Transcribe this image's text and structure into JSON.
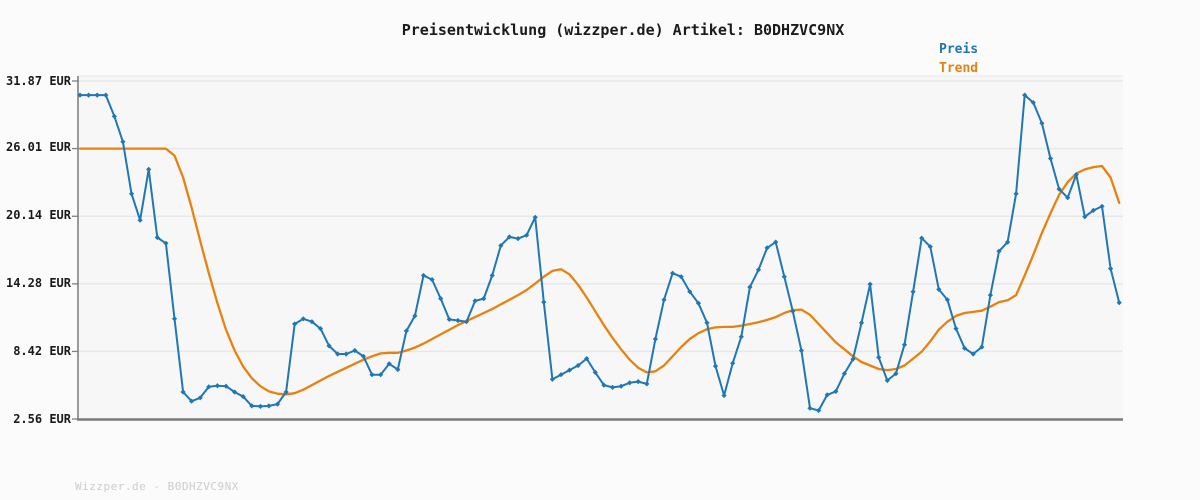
{
  "title": "Preisentwicklung (wizzper.de) Artikel: B0DHZVC9NX",
  "watermark": "Wizzper.de - B0DHZVC9NX",
  "colors": {
    "price": "#1f77b4",
    "trend": "#e8820e",
    "grid": "#e8e8e8",
    "plot_bg": "#f7f7f7",
    "page_bg": "#fbfbfb",
    "axis": "#7a7a7a",
    "tick": "#808080",
    "title_text": "#1b1b1b",
    "tick_label": "#1a1a1a",
    "watermark_text": "#cccccc"
  },
  "chart_data": {
    "type": "line",
    "title": "Preisentwicklung (wizzper.de) Artikel: B0DHZVC9NX",
    "xlabel": "",
    "ylabel": "EUR",
    "x_axis": {
      "visible_labels": false,
      "points": 122
    },
    "ylim": [
      2.56,
      32.3
    ],
    "grid": true,
    "legend_position": "top-right",
    "y_ticks": [
      {
        "label": "31.87 EUR",
        "value": 31.87
      },
      {
        "label": "26.01 EUR",
        "value": 26.01
      },
      {
        "label": "20.14 EUR",
        "value": 20.14
      },
      {
        "label": "14.28 EUR",
        "value": 14.28
      },
      {
        "label": "8.42 EUR",
        "value": 8.42
      },
      {
        "label": "2.56 EUR",
        "value": 2.56
      }
    ],
    "series": [
      {
        "name": "Preis",
        "color": "#1f77b4",
        "markers": true,
        "values": [
          30.65,
          30.65,
          30.65,
          30.65,
          28.8,
          26.6,
          22.1,
          19.8,
          24.2,
          18.3,
          17.8,
          11.25,
          4.9,
          4.1,
          4.4,
          5.35,
          5.45,
          5.4,
          4.9,
          4.5,
          3.7,
          3.65,
          3.7,
          3.85,
          4.9,
          10.8,
          11.25,
          11.0,
          10.4,
          8.9,
          8.2,
          8.2,
          8.5,
          8.0,
          6.4,
          6.4,
          7.35,
          6.85,
          10.2,
          11.5,
          15.0,
          14.65,
          13.0,
          11.2,
          11.1,
          11.0,
          12.8,
          13.0,
          15.0,
          17.6,
          18.35,
          18.2,
          18.5,
          20.05,
          12.7,
          6.0,
          6.4,
          6.8,
          7.2,
          7.8,
          6.6,
          5.5,
          5.3,
          5.4,
          5.7,
          5.8,
          5.6,
          9.5,
          12.9,
          15.2,
          14.9,
          13.6,
          12.6,
          10.9,
          7.15,
          4.6,
          7.4,
          9.7,
          14.0,
          15.5,
          17.4,
          17.9,
          14.9,
          11.9,
          8.5,
          3.5,
          3.3,
          4.65,
          4.95,
          6.5,
          7.75,
          10.9,
          14.25,
          7.9,
          5.9,
          6.5,
          9.0,
          13.6,
          18.25,
          17.5,
          13.8,
          12.9,
          10.4,
          8.7,
          8.2,
          8.8,
          13.3,
          17.1,
          17.9,
          22.1,
          30.65,
          30.0,
          28.2,
          25.15,
          22.5,
          21.75,
          23.75,
          20.1,
          20.65,
          21.0,
          15.6,
          12.65
        ]
      },
      {
        "name": "Trend",
        "color": "#e8820e",
        "markers": false,
        "values": [
          26.01,
          26.01,
          26.01,
          26.01,
          26.01,
          26.01,
          26.01,
          26.01,
          26.01,
          26.01,
          26.0,
          25.4,
          23.5,
          20.9,
          18.0,
          15.2,
          12.6,
          10.3,
          8.5,
          7.1,
          6.1,
          5.4,
          4.95,
          4.75,
          4.7,
          4.8,
          5.1,
          5.5,
          5.9,
          6.3,
          6.65,
          7.0,
          7.35,
          7.7,
          8.0,
          8.25,
          8.3,
          8.3,
          8.5,
          8.75,
          9.1,
          9.5,
          9.9,
          10.3,
          10.7,
          11.05,
          11.4,
          11.75,
          12.1,
          12.5,
          12.9,
          13.3,
          13.75,
          14.3,
          14.9,
          15.4,
          15.55,
          15.1,
          14.2,
          13.1,
          11.9,
          10.7,
          9.6,
          8.6,
          7.7,
          7.0,
          6.6,
          6.7,
          7.2,
          8.0,
          8.8,
          9.5,
          10.0,
          10.35,
          10.5,
          10.55,
          10.55,
          10.65,
          10.8,
          10.95,
          11.15,
          11.4,
          11.75,
          12.0,
          12.05,
          11.6,
          10.8,
          10.0,
          9.2,
          8.6,
          8.0,
          7.5,
          7.2,
          6.9,
          6.8,
          6.9,
          7.2,
          7.8,
          8.4,
          9.3,
          10.3,
          11.0,
          11.5,
          11.75,
          11.85,
          11.95,
          12.3,
          12.7,
          12.85,
          13.3,
          15.0,
          16.8,
          18.7,
          20.4,
          22.0,
          23.1,
          23.85,
          24.2,
          24.4,
          24.5,
          23.5,
          21.3
        ]
      }
    ]
  }
}
